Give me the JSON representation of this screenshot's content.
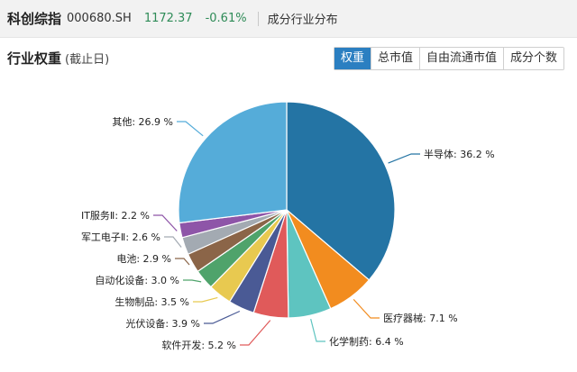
{
  "topbar": {
    "index_name": "科创综指",
    "code": "000680.SH",
    "price": "1172.37",
    "change": "-0.61%",
    "section": "成分行业分布"
  },
  "header": {
    "title": "行业权重",
    "subtitle": "(截止日)"
  },
  "tabs": [
    "权重",
    "总市值",
    "自由流通市值",
    "成分个数"
  ],
  "active_tab": "权重",
  "colors": {
    "accent": "#2b7fc1",
    "change_negative": "#2e8b57"
  },
  "chart_data": {
    "type": "pie",
    "title": "",
    "unit": "%",
    "slices": [
      {
        "name": "半导体",
        "value": 36.2,
        "label": "半导体: 36.2 %",
        "color": "#2474a4"
      },
      {
        "name": "医疗器械",
        "value": 7.1,
        "label": "医疗器械: 7.1 %",
        "color": "#f28c1f"
      },
      {
        "name": "化学制药",
        "value": 6.4,
        "label": "化学制药: 6.4 %",
        "color": "#5ec4c0"
      },
      {
        "name": "软件开发",
        "value": 5.2,
        "label": "软件开发: 5.2 %",
        "color": "#e05a5a"
      },
      {
        "name": "光伏设备",
        "value": 3.9,
        "label": "光伏设备: 3.9 %",
        "color": "#4a5a95"
      },
      {
        "name": "生物制品",
        "value": 3.5,
        "label": "生物制品: 3.5 %",
        "color": "#e8c950"
      },
      {
        "name": "自动化设备",
        "value": 3.0,
        "label": "自动化设备: 3.0 %",
        "color": "#4fa36b"
      },
      {
        "name": "电池",
        "value": 2.9,
        "label": "电池: 2.9 %",
        "color": "#8b6548"
      },
      {
        "name": "军工电子Ⅱ",
        "value": 2.6,
        "label": "军工电子Ⅱ: 2.6 %",
        "color": "#a3aab2"
      },
      {
        "name": "IT服务Ⅱ",
        "value": 2.2,
        "label": "IT服务Ⅱ: 2.2 %",
        "color": "#8e55a8"
      },
      {
        "name": "其他",
        "value": 26.9,
        "label": "其他: 26.9 %",
        "color": "#55acd9"
      }
    ]
  }
}
